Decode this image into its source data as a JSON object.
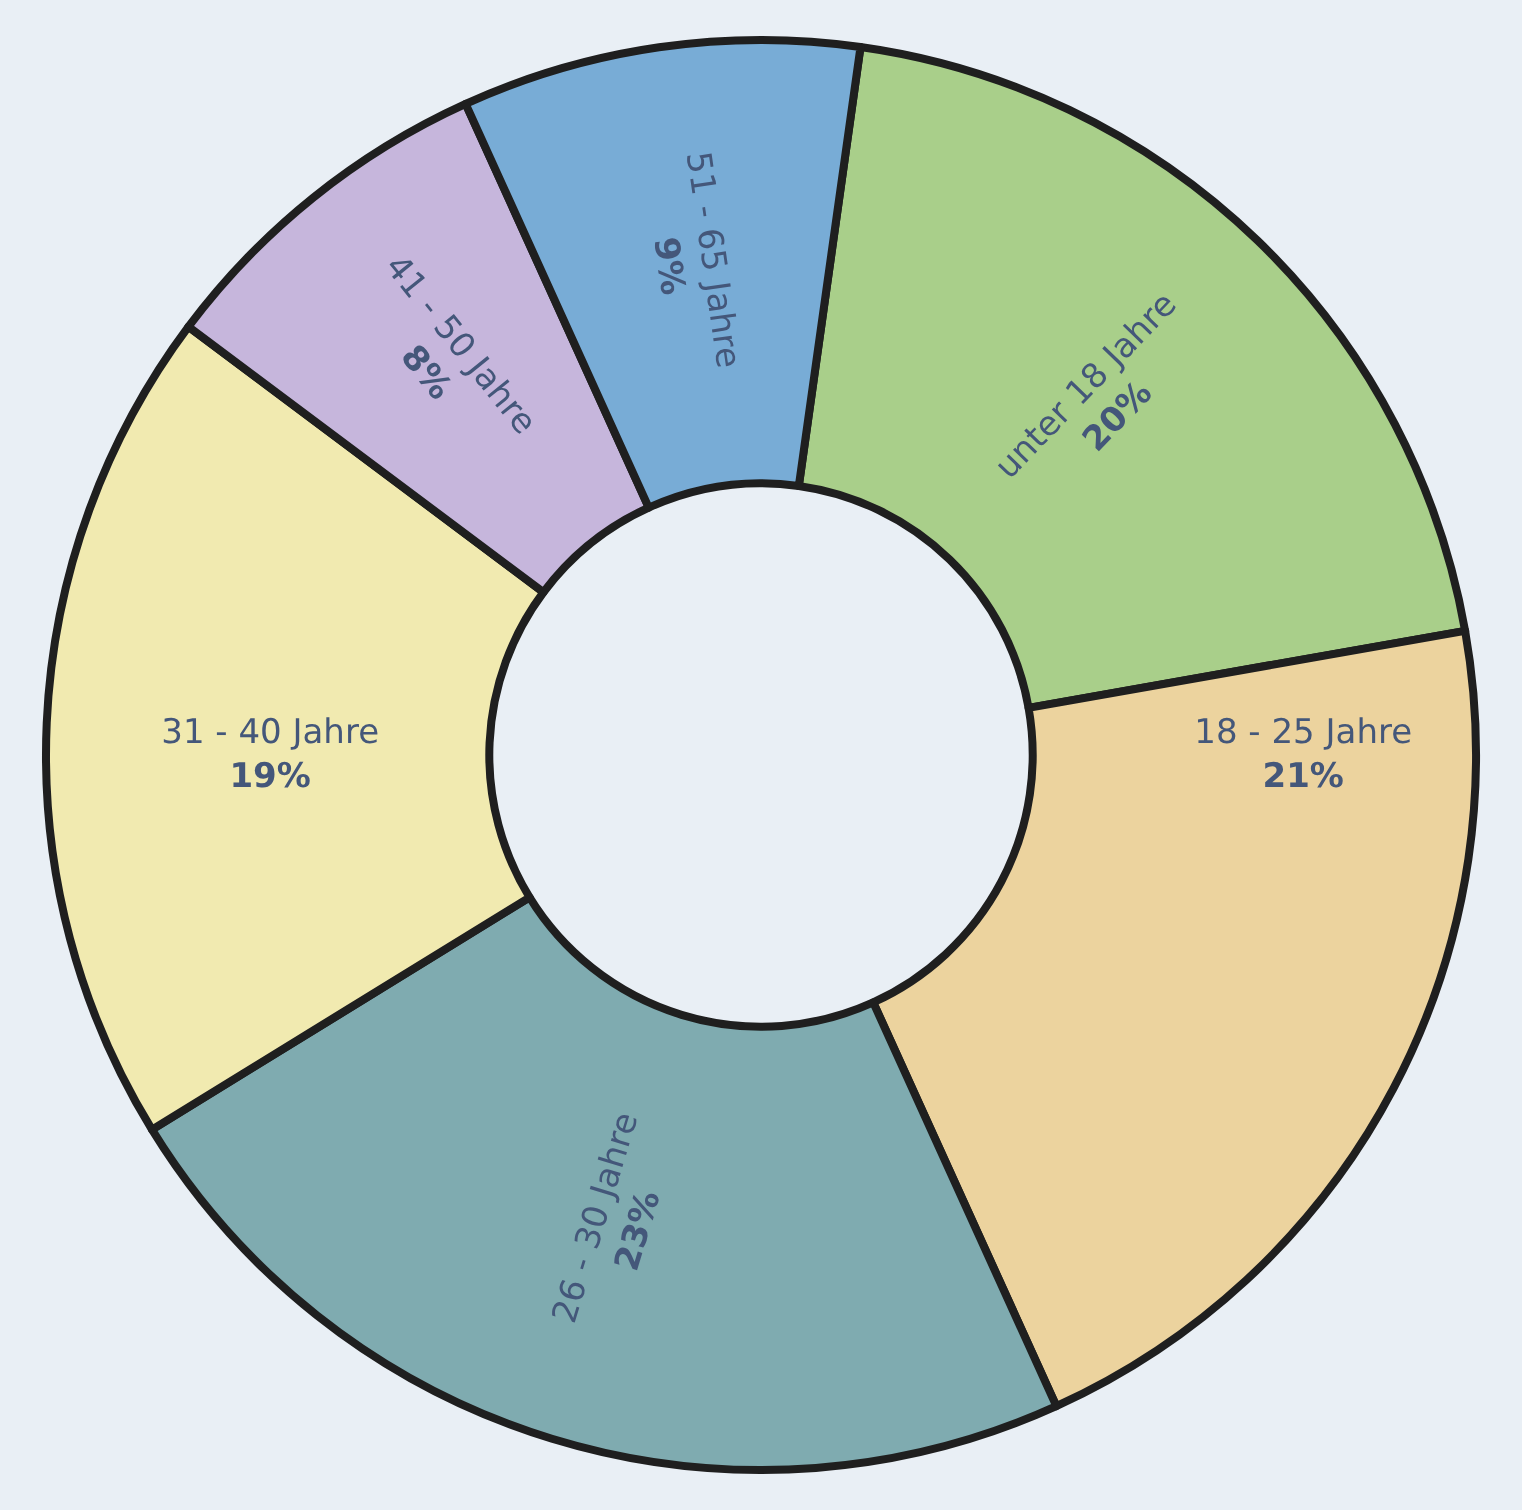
{
  "chart_data": {
    "type": "donut",
    "categories": [
      "unter 18 Jahre",
      "18 - 25 Jahre",
      "26 - 30 Jahre",
      "31 - 40 Jahre",
      "41 - 50 Jahre",
      "51 - 65 Jahre"
    ],
    "values": [
      20,
      21,
      23,
      19,
      8,
      9
    ],
    "value_labels": [
      "20%",
      "21%",
      "23%",
      "19%",
      "8%",
      "9%"
    ],
    "colors": [
      "#a9cf8a",
      "#ecd39e",
      "#7fabb0",
      "#f1eab0",
      "#c6b6dc",
      "#78acd6"
    ],
    "legend": false
  }
}
